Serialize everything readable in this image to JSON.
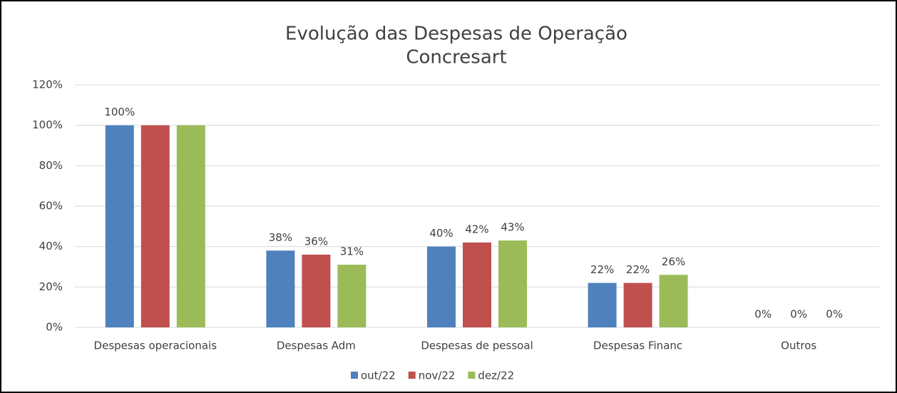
{
  "chart_data": {
    "type": "bar",
    "title": "Evolução das Despesas de Operação",
    "subtitle": "Concresart",
    "categories": [
      "Despesas operacionais",
      "Despesas Adm",
      "Despesas de pessoal",
      "Despesas Financ",
      "Outros"
    ],
    "series": [
      {
        "name": "out/22",
        "color": "#4f81bd",
        "values": [
          100,
          38,
          40,
          22,
          0
        ],
        "value_labels": [
          "100%",
          "38%",
          "40%",
          "22%",
          "0%"
        ]
      },
      {
        "name": "nov/22",
        "color": "#c0504d",
        "values": [
          100,
          36,
          42,
          22,
          0
        ],
        "value_labels": [
          null,
          "36%",
          "42%",
          "22%",
          "0%"
        ]
      },
      {
        "name": "dez/22",
        "color": "#9bbb59",
        "values": [
          100,
          31,
          43,
          26,
          0
        ],
        "value_labels": [
          null,
          "31%",
          "43%",
          "26%",
          "0%"
        ]
      }
    ],
    "ylim": [
      0,
      120
    ],
    "yticks": [
      {
        "value": 0,
        "label": "0%"
      },
      {
        "value": 20,
        "label": "20%"
      },
      {
        "value": 40,
        "label": "40%"
      },
      {
        "value": 60,
        "label": "60%"
      },
      {
        "value": 80,
        "label": "80%"
      },
      {
        "value": 100,
        "label": "100%"
      },
      {
        "value": 120,
        "label": "120%"
      }
    ],
    "grid": true,
    "legend": "bottom"
  }
}
